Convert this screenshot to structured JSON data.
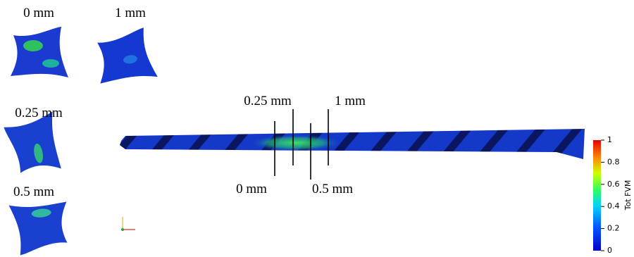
{
  "cross_sections": [
    {
      "label": "0 mm"
    },
    {
      "label": "1 mm"
    },
    {
      "label": "0.25 mm"
    },
    {
      "label": "0.5 mm"
    }
  ],
  "drill_labels": {
    "top": [
      "0.25 mm",
      "1 mm"
    ],
    "bottom": [
      "0 mm",
      "0.5 mm"
    ]
  },
  "colorbar": {
    "title": "Tot FVM",
    "ticks": [
      0,
      0.2,
      0.4,
      0.6,
      0.8,
      1
    ]
  }
}
